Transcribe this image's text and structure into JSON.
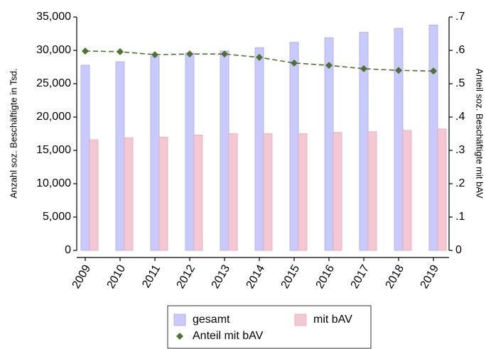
{
  "chart_data": {
    "type": "bar",
    "y_label": "Anzahl soz. Beschäftigte in Tsd.",
    "y2_label": "Anteil soz. Beschäftigte mit bAV",
    "categories": [
      "2009",
      "2010",
      "2011",
      "2012",
      "2013",
      "2014",
      "2015",
      "2016",
      "2017",
      "2018",
      "2019"
    ],
    "series": [
      {
        "name": "gesamt",
        "type": "bar",
        "color": "#c9c9fb",
        "values": [
          27770,
          28300,
          29100,
          29600,
          29900,
          30400,
          31200,
          31900,
          32700,
          33300,
          33800
        ]
      },
      {
        "name": "mit bAV",
        "type": "bar",
        "color": "#f4c8d3",
        "values": [
          16600,
          16900,
          17000,
          17300,
          17500,
          17500,
          17500,
          17700,
          17800,
          18000,
          18200
        ]
      },
      {
        "name": "Anteil mit bAV",
        "type": "line",
        "axis": "y2",
        "color": "#4e7230",
        "values": [
          0.598,
          0.596,
          0.587,
          0.589,
          0.589,
          0.579,
          0.562,
          0.555,
          0.545,
          0.54,
          0.538
        ]
      }
    ],
    "ylim": [
      0,
      35000
    ],
    "yticks": [
      0,
      {
        "value": 5000,
        "label": "5,000"
      },
      {
        "value": 10000,
        "label": "10,000"
      },
      {
        "value": 15000,
        "label": "15,000"
      },
      {
        "value": 20000,
        "label": "20,000"
      },
      {
        "value": 25000,
        "label": "25,000"
      },
      {
        "value": 30000,
        "label": "30,000"
      },
      {
        "value": 35000,
        "label": "35,000"
      }
    ],
    "y2lim": [
      0,
      0.7
    ],
    "y2ticks": [
      0,
      {
        "value": 0.1,
        "label": ".1"
      },
      {
        "value": 0.2,
        "label": ".2"
      },
      {
        "value": 0.3,
        "label": ".3"
      },
      {
        "value": 0.4,
        "label": ".4"
      },
      {
        "value": 0.5,
        "label": ".5"
      },
      {
        "value": 0.6,
        "label": ".6"
      },
      {
        "value": 0.7,
        "label": ".7"
      }
    ],
    "legend": "bottom"
  }
}
